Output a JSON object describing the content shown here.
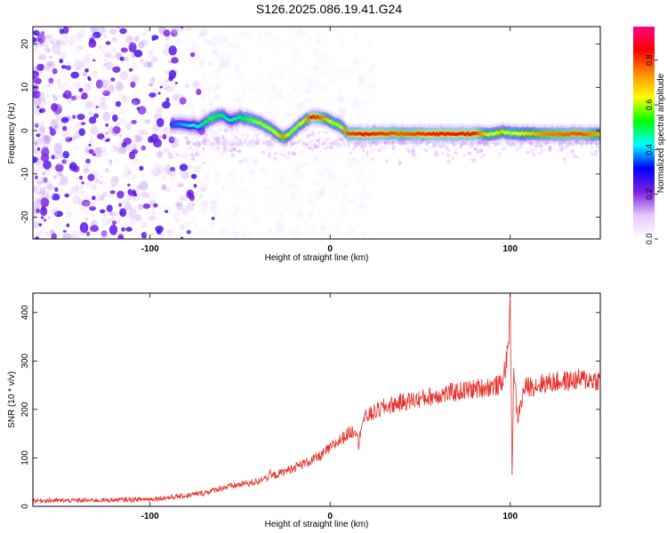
{
  "title": "S126.2025.086.19.41.G24",
  "chart_data": [
    {
      "type": "heatmap",
      "title": "S126.2025.086.19.41.G24",
      "xlabel": "Height of straight line (km)",
      "ylabel": "Frequency (Hz)",
      "xlim": [
        -165,
        150
      ],
      "ylim": [
        -25,
        24
      ],
      "x_ticks": [
        -100,
        0,
        100
      ],
      "y_ticks": [
        -20,
        -10,
        0,
        10,
        20
      ],
      "colorbar": {
        "label": "Normalized spectral amplitude",
        "range": [
          0,
          0.95
        ],
        "ticks": [
          0.0,
          0.2,
          0.4,
          0.6,
          0.8
        ],
        "tick_labels": [
          "0.0",
          "0.2",
          "0.4",
          "0.6",
          "0.8"
        ],
        "colormap": [
          "#ffffff",
          "#e6c8ff",
          "#7b1fe0",
          "#0000ff",
          "#00ffff",
          "#00ff00",
          "#ffff00",
          "#ff8c00",
          "#ff0000",
          "#ff0080"
        ]
      },
      "ridge": {
        "x": [
          -88,
          -80,
          -72,
          -66,
          -60,
          -55,
          -50,
          -45,
          -40,
          -35,
          -30,
          -26,
          -22,
          -18,
          -14,
          -10,
          -6,
          -2,
          2,
          6,
          10,
          20,
          40,
          60,
          80,
          90,
          95,
          100,
          120,
          140,
          150
        ],
        "y": [
          1.5,
          1.4,
          1.0,
          2.8,
          3.6,
          2.3,
          3.1,
          2.6,
          2.0,
          1.0,
          -0.5,
          -1.6,
          -0.6,
          1.0,
          2.4,
          3.1,
          3.1,
          2.6,
          1.8,
          1.0,
          -0.6,
          -0.8,
          -0.7,
          -0.8,
          -0.7,
          -0.9,
          -0.3,
          -0.6,
          -0.8,
          -0.8,
          -0.8
        ],
        "amplitude": [
          0.35,
          0.4,
          0.45,
          0.55,
          0.5,
          0.45,
          0.5,
          0.55,
          0.6,
          0.6,
          0.62,
          0.75,
          0.6,
          0.6,
          0.65,
          0.85,
          0.8,
          0.7,
          0.6,
          0.6,
          0.8,
          0.85,
          0.78,
          0.85,
          0.85,
          0.6,
          0.7,
          0.6,
          0.75,
          0.8,
          0.7
        ]
      }
    },
    {
      "type": "line",
      "xlabel": "Height of straight line (km)",
      "ylabel": "SNR (10 * v/v)",
      "xlim": [
        -165,
        150
      ],
      "ylim": [
        0,
        440
      ],
      "x_ticks": [
        -100,
        0,
        100
      ],
      "y_ticks": [
        0,
        100,
        200,
        300,
        400
      ],
      "color": "#e8302b",
      "series": [
        {
          "x": [
            -165,
            -140,
            -120,
            -100,
            -90,
            -80,
            -70,
            -60,
            -50,
            -40,
            -35,
            -30,
            -25,
            -20,
            -15,
            -10,
            -5,
            0,
            5,
            10,
            15,
            16,
            17,
            20,
            25,
            30,
            40,
            50,
            60,
            70,
            80,
            90,
            95,
            98,
            99,
            100,
            101,
            102,
            104,
            108,
            120,
            130,
            140,
            150
          ],
          "y": [
            12,
            12,
            13,
            15,
            18,
            22,
            28,
            38,
            45,
            52,
            60,
            65,
            72,
            80,
            88,
            95,
            105,
            120,
            135,
            150,
            160,
            115,
            170,
            185,
            195,
            205,
            215,
            222,
            230,
            236,
            242,
            248,
            250,
            300,
            330,
            440,
            70,
            290,
            180,
            245,
            255,
            258,
            262,
            260
          ]
        }
      ]
    }
  ]
}
